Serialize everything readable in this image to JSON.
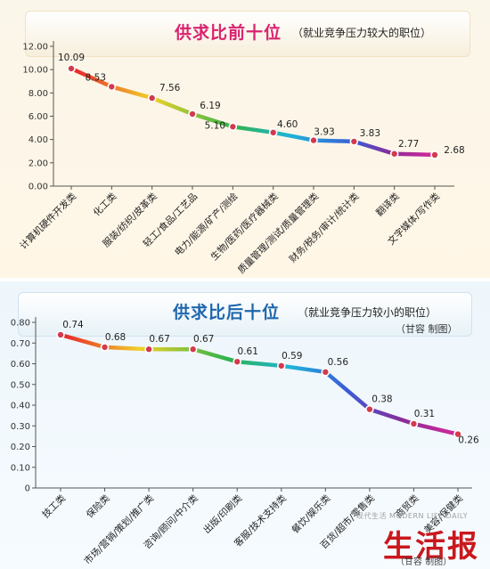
{
  "chart_data": [
    {
      "type": "line",
      "title": "供求比前十位",
      "subtitle": "（就业竞争压力较大的职位）",
      "categories": [
        "计算机硬件开发类",
        "化工类",
        "服装/纺织/皮革类",
        "轻工/食品/工艺品",
        "电力/能源/矿产/测绘",
        "生物/医药/医疗器械类",
        "质量管理/测试/质量管理类",
        "财务/税务/审计/统计类",
        "翻译类",
        "文字媒体/写作类"
      ],
      "values": [
        10.09,
        8.53,
        7.56,
        6.19,
        5.1,
        4.6,
        3.93,
        3.83,
        2.77,
        2.68
      ],
      "value_labels": [
        "10.09",
        "8.53",
        "7.56",
        "6.19",
        "5.10",
        "4.60",
        "3.93",
        "3.83",
        "2.77",
        "2.68"
      ],
      "yticks": [
        "12.00",
        "10.00",
        "8.00",
        "6.00",
        "4.00",
        "2.00",
        "0.00"
      ],
      "ylim": [
        0,
        12
      ],
      "grid": false,
      "legend": "none"
    },
    {
      "type": "line",
      "title": "供求比后十位",
      "subtitle": "（就业竞争压力较小的职位）",
      "credit": "（甘容 制图）",
      "categories": [
        "技工类",
        "保险类",
        "市场/营销/策划/推广类",
        "咨询/顾问/中介类",
        "出版/印刷类",
        "客服/技术支持类",
        "餐饮/娱乐类",
        "百货/超市/零售类",
        "商贸类",
        "美容/保健类"
      ],
      "values": [
        0.74,
        0.68,
        0.67,
        0.67,
        0.61,
        0.59,
        0.56,
        0.38,
        0.31,
        0.26
      ],
      "value_labels": [
        "0.74",
        "0.68",
        "0.67",
        "0.67",
        "0.61",
        "0.59",
        "0.56",
        "0.38",
        "0.31",
        "0.26"
      ],
      "yticks": [
        "0.80",
        "0.70",
        "0.60",
        "0.50",
        "0.40",
        "0.30",
        "0.20",
        "0.10",
        "0"
      ],
      "ylim": [
        0,
        0.8
      ],
      "grid": false,
      "legend": "none"
    }
  ],
  "logo": {
    "watermark": "现代生活 MODERN LIFE DAILY",
    "text": "生活报",
    "credit": "（甘容 制图）"
  },
  "colors": {
    "title_top": "#d9236f",
    "title_bottom": "#1f67ad",
    "logo": "#c9181d"
  }
}
